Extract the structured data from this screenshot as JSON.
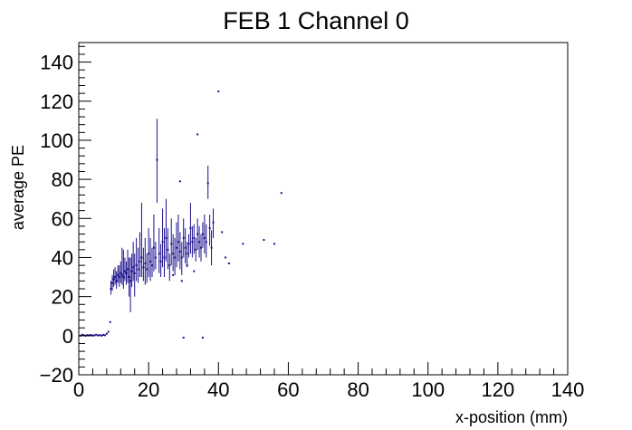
{
  "chart_data": {
    "type": "scatter",
    "title": "FEB 1 Channel 0",
    "xlabel": "x-position (mm)",
    "ylabel": "average PE",
    "xlim": [
      0,
      140
    ],
    "ylim": [
      -20,
      150
    ],
    "xticks": [
      0,
      20,
      40,
      60,
      80,
      100,
      120,
      140
    ],
    "xtick_labels": [
      "0",
      "20",
      "40",
      "60",
      "80",
      "100",
      "120",
      "140"
    ],
    "yticks": [
      -20,
      0,
      20,
      40,
      60,
      80,
      100,
      120,
      140
    ],
    "ytick_labels": [
      "−20",
      "0",
      "20",
      "40",
      "60",
      "80",
      "100",
      "120",
      "140"
    ],
    "grid": false,
    "legend": "none",
    "marker_color": "#1a0f8c",
    "series": [
      {
        "points": [
          {
            "x": 0.5,
            "y": 0.0
          },
          {
            "x": 1.0,
            "y": 0.5
          },
          {
            "x": 1.5,
            "y": 0.2
          },
          {
            "x": 2.0,
            "y": 0.0
          },
          {
            "x": 2.5,
            "y": 0.3
          },
          {
            "x": 3.0,
            "y": 0.1
          },
          {
            "x": 3.5,
            "y": 0.4
          },
          {
            "x": 4.0,
            "y": 0.0
          },
          {
            "x": 4.5,
            "y": 0.2
          },
          {
            "x": 5.0,
            "y": 0.5
          },
          {
            "x": 5.5,
            "y": 0.1
          },
          {
            "x": 6.0,
            "y": 0.3
          },
          {
            "x": 6.5,
            "y": 0.0
          },
          {
            "x": 7.0,
            "y": 0.4
          },
          {
            "x": 7.5,
            "y": 0.2
          },
          {
            "x": 8.0,
            "y": 1.0
          },
          {
            "x": 8.5,
            "y": 2.0
          },
          {
            "x": 9.0,
            "y": 7.0
          },
          {
            "x": 9.2,
            "y": 24.0,
            "lo": 21.0,
            "hi": 28.0
          },
          {
            "x": 9.6,
            "y": 27.0,
            "lo": 23.0,
            "hi": 31.0
          },
          {
            "x": 10.0,
            "y": 29.0,
            "lo": 25.0,
            "hi": 34.0
          },
          {
            "x": 10.4,
            "y": 30.0,
            "lo": 26.0,
            "hi": 35.0
          },
          {
            "x": 10.8,
            "y": 28.0,
            "lo": 24.0,
            "hi": 33.0
          },
          {
            "x": 11.2,
            "y": 31.0,
            "lo": 27.0,
            "hi": 36.0
          },
          {
            "x": 11.6,
            "y": 30.0,
            "lo": 25.0,
            "hi": 36.0
          },
          {
            "x": 12.0,
            "y": 32.0,
            "lo": 27.0,
            "hi": 38.0
          },
          {
            "x": 12.4,
            "y": 31.0,
            "lo": 26.0,
            "hi": 45.0
          },
          {
            "x": 12.8,
            "y": 30.0,
            "lo": 24.0,
            "hi": 44.0
          },
          {
            "x": 13.2,
            "y": 33.0,
            "lo": 28.0,
            "hi": 40.0
          },
          {
            "x": 13.6,
            "y": 32.0,
            "lo": 26.0,
            "hi": 38.0
          },
          {
            "x": 14.0,
            "y": 34.0,
            "lo": 27.0,
            "hi": 44.0
          },
          {
            "x": 14.4,
            "y": 30.0,
            "lo": 20.0,
            "hi": 40.0
          },
          {
            "x": 14.8,
            "y": 28.0,
            "lo": 12.0,
            "hi": 40.0
          },
          {
            "x": 15.2,
            "y": 33.0,
            "lo": 25.0,
            "hi": 42.0
          },
          {
            "x": 15.6,
            "y": 35.0,
            "lo": 28.0,
            "hi": 48.0
          },
          {
            "x": 16.0,
            "y": 32.0,
            "lo": 20.0,
            "hi": 42.0
          },
          {
            "x": 16.5,
            "y": 36.0,
            "lo": 28.0,
            "hi": 50.0
          },
          {
            "x": 17.0,
            "y": 34.0,
            "lo": 27.0,
            "hi": 45.0
          },
          {
            "x": 17.5,
            "y": 38.0,
            "lo": 30.0,
            "hi": 53.0
          },
          {
            "x": 18.0,
            "y": 40.0,
            "lo": 30.0,
            "hi": 68.0
          },
          {
            "x": 18.5,
            "y": 35.0,
            "lo": 28.0,
            "hi": 45.0
          },
          {
            "x": 19.0,
            "y": 37.0,
            "lo": 26.0,
            "hi": 50.0
          },
          {
            "x": 19.5,
            "y": 34.0,
            "lo": 27.0,
            "hi": 42.0
          },
          {
            "x": 20.0,
            "y": 42.0,
            "lo": 30.0,
            "hi": 55.0
          },
          {
            "x": 20.5,
            "y": 38.0,
            "lo": 28.0,
            "hi": 50.0
          },
          {
            "x": 21.0,
            "y": 36.0,
            "lo": 30.0,
            "hi": 45.0
          },
          {
            "x": 21.5,
            "y": 45.0,
            "lo": 33.0,
            "hi": 62.0
          },
          {
            "x": 22.0,
            "y": 40.0,
            "lo": 34.0,
            "hi": 48.0
          },
          {
            "x": 22.4,
            "y": 90.0,
            "lo": 68.0,
            "hi": 111.0
          },
          {
            "x": 23.0,
            "y": 42.0,
            "lo": 32.0,
            "hi": 55.0
          },
          {
            "x": 23.5,
            "y": 38.0,
            "lo": 30.0,
            "hi": 47.0
          },
          {
            "x": 24.0,
            "y": 48.0,
            "lo": 35.0,
            "hi": 65.0
          },
          {
            "x": 24.5,
            "y": 40.0,
            "lo": 30.0,
            "hi": 55.0
          },
          {
            "x": 25.0,
            "y": 50.0,
            "lo": 38.0,
            "hi": 70.0
          },
          {
            "x": 25.5,
            "y": 44.0,
            "lo": 34.0,
            "hi": 55.0
          },
          {
            "x": 26.0,
            "y": 36.0,
            "lo": 28.0,
            "hi": 42.0
          },
          {
            "x": 26.5,
            "y": 47.0,
            "lo": 36.0,
            "hi": 60.0
          },
          {
            "x": 27.0,
            "y": 42.0,
            "lo": 33.0,
            "hi": 52.0
          },
          {
            "x": 27.5,
            "y": 40.0,
            "lo": 31.0,
            "hi": 50.0
          },
          {
            "x": 28.0,
            "y": 45.0,
            "lo": 35.0,
            "hi": 58.0
          },
          {
            "x": 28.5,
            "y": 48.0,
            "lo": 38.0,
            "hi": 62.0
          },
          {
            "x": 29.0,
            "y": 43.0,
            "lo": 34.0,
            "hi": 53.0
          },
          {
            "x": 29.5,
            "y": 40.0,
            "lo": 31.0,
            "hi": 48.0
          },
          {
            "x": 30.0,
            "y": 50.0,
            "lo": 40.0,
            "hi": 60.0
          },
          {
            "x": 30.5,
            "y": 45.0,
            "lo": 37.0,
            "hi": 55.0
          },
          {
            "x": 31.0,
            "y": 42.0,
            "lo": 35.0,
            "hi": 48.0
          },
          {
            "x": 31.5,
            "y": 47.0,
            "lo": 40.0,
            "hi": 52.0
          },
          {
            "x": 32.0,
            "y": 55.0,
            "lo": 42.0,
            "hi": 68.0
          },
          {
            "x": 32.5,
            "y": 48.0,
            "lo": 40.0,
            "hi": 56.0
          },
          {
            "x": 33.0,
            "y": 50.0,
            "lo": 42.0,
            "hi": 57.0
          },
          {
            "x": 33.5,
            "y": 44.0,
            "lo": 38.0,
            "hi": 50.0
          },
          {
            "x": 34.0,
            "y": 52.0,
            "lo": 44.0,
            "hi": 60.0
          },
          {
            "x": 34.5,
            "y": 48.0,
            "lo": 40.0,
            "hi": 56.0
          },
          {
            "x": 35.0,
            "y": 45.0,
            "lo": 38.0,
            "hi": 52.0
          },
          {
            "x": 35.5,
            "y": 52.0,
            "lo": 45.0,
            "hi": 58.0
          },
          {
            "x": 36.0,
            "y": 50.0,
            "lo": 42.0,
            "hi": 62.0
          },
          {
            "x": 36.5,
            "y": 48.0,
            "lo": 40.0,
            "hi": 57.0
          },
          {
            "x": 37.0,
            "y": 78.0,
            "lo": 70.0,
            "hi": 87.0
          },
          {
            "x": 37.5,
            "y": 55.0,
            "lo": 46.0,
            "hi": 62.0
          },
          {
            "x": 38.0,
            "y": 45.0,
            "lo": 36.0,
            "hi": 54.0
          },
          {
            "x": 38.5,
            "y": 58.0,
            "lo": 50.0,
            "hi": 65.0
          },
          {
            "x": 40.0,
            "y": 125.0
          },
          {
            "x": 34.0,
            "y": 103.0
          },
          {
            "x": 29.0,
            "y": 79.0
          },
          {
            "x": 41.0,
            "y": 53.0
          },
          {
            "x": 42.0,
            "y": 40.0
          },
          {
            "x": 43.0,
            "y": 37.0
          },
          {
            "x": 47.0,
            "y": 47.0
          },
          {
            "x": 53.0,
            "y": 49.0
          },
          {
            "x": 56.0,
            "y": 47.0
          },
          {
            "x": 58.0,
            "y": 73.0
          },
          {
            "x": 30.0,
            "y": -1.0
          },
          {
            "x": 35.5,
            "y": -1.0
          },
          {
            "x": 27.0,
            "y": 31.0
          },
          {
            "x": 29.5,
            "y": 28.0
          },
          {
            "x": 31.0,
            "y": 36.0
          },
          {
            "x": 33.0,
            "y": 33.0
          }
        ]
      }
    ]
  }
}
